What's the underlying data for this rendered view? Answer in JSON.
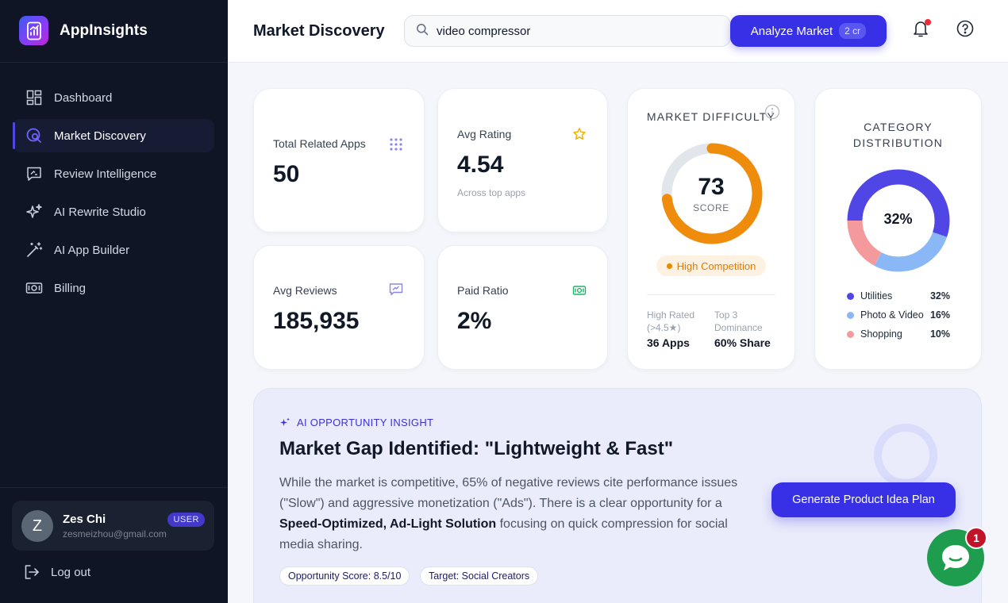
{
  "app": {
    "name": "AppInsights"
  },
  "sidebar": {
    "items": [
      {
        "label": "Dashboard",
        "icon": "dashboard-icon",
        "active": false
      },
      {
        "label": "Market Discovery",
        "icon": "market-discovery-icon",
        "active": true
      },
      {
        "label": "Review Intelligence",
        "icon": "review-icon",
        "active": false
      },
      {
        "label": "AI Rewrite Studio",
        "icon": "sparkles-icon",
        "active": false
      },
      {
        "label": "AI App Builder",
        "icon": "magic-wand-icon",
        "active": false
      },
      {
        "label": "Billing",
        "icon": "billing-icon",
        "active": false
      }
    ],
    "user": {
      "initial": "Z",
      "name": "Zes Chi",
      "email": "zesmeizhou@gmail.com",
      "role": "USER"
    },
    "logout_label": "Log out"
  },
  "header": {
    "title": "Market Discovery",
    "search_value": "video compressor",
    "analyze_label": "Analyze Market",
    "analyze_cost": "2 cr"
  },
  "stats": {
    "total_related_apps": {
      "label": "Total Related Apps",
      "value": "50"
    },
    "avg_rating": {
      "label": "Avg Rating",
      "value": "4.54",
      "sub": "Across top apps"
    },
    "avg_reviews": {
      "label": "Avg Reviews",
      "value": "185,935"
    },
    "paid_ratio": {
      "label": "Paid Ratio",
      "value": "2%"
    }
  },
  "difficulty": {
    "title": "MARKET DIFFICULTY",
    "score": "73",
    "score_value": 73,
    "score_label": "SCORE",
    "badge": "High Competition",
    "high_rated_label_1": "High Rated",
    "high_rated_label_2": "(>4.5★)",
    "high_rated_value": "36 Apps",
    "dominance_label_1": "Top 3",
    "dominance_label_2": "Dominance",
    "dominance_value": "60% Share",
    "colors": {
      "track": "#e2e5ea",
      "fill": "#f08c0c"
    }
  },
  "category": {
    "title_line1": "CATEGORY",
    "title_line2": "DISTRIBUTION",
    "center_label": "32%",
    "legend": [
      {
        "name": "Utilities",
        "pct": "32%",
        "color": "#4f46e5"
      },
      {
        "name": "Photo & Video",
        "pct": "16%",
        "color": "#8ab8f7"
      },
      {
        "name": "Shopping",
        "pct": "10%",
        "color": "#f59a9c"
      }
    ]
  },
  "insight": {
    "kicker": "AI OPPORTUNITY INSIGHT",
    "title": "Market Gap Identified: \"Lightweight & Fast\"",
    "body_pre": "While the market is competitive, 65% of negative reviews cite performance issues (\"Slow\") and aggressive monetization (\"Ads\"). There is a clear opportunity for a ",
    "body_bold": "Speed-Optimized, Ad-Light Solution",
    "body_post": " focusing on quick compression for social media sharing.",
    "tags": [
      "Opportunity Score: 8.5/10",
      "Target: Social Creators"
    ],
    "cta_label": "Generate Product Idea Plan"
  },
  "chat": {
    "badge": "1"
  },
  "chart_data": {
    "type": "pie",
    "categories": [
      "Utilities",
      "Photo & Video",
      "Shopping"
    ],
    "values": [
      32,
      16,
      10
    ],
    "title": "CATEGORY DISTRIBUTION",
    "legend": "bottom"
  }
}
